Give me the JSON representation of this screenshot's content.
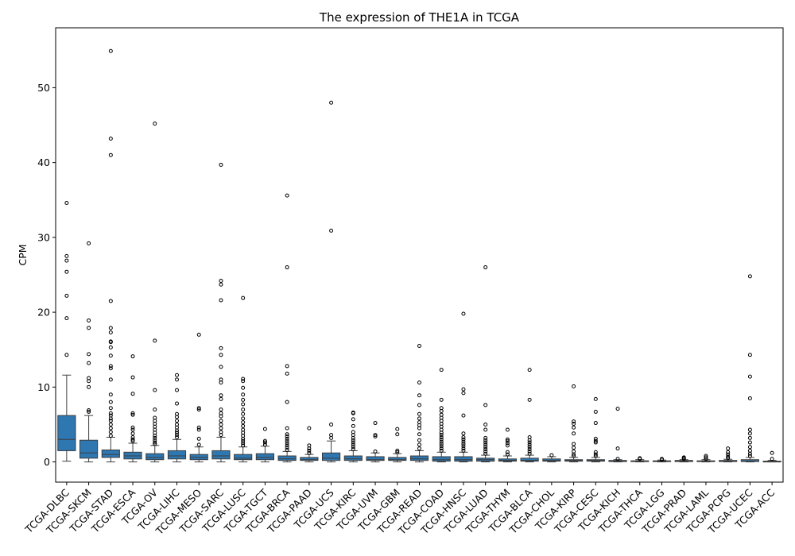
{
  "chart_data": {
    "type": "box",
    "title": "The expression of THE1A in TCGA",
    "xlabel": "",
    "ylabel": "CPM",
    "ylim": [
      -2.7,
      58
    ],
    "yticks": [
      0,
      10,
      20,
      30,
      40,
      50
    ],
    "box_color": "#2e77b1",
    "grid": false,
    "legend": "none",
    "categories": [
      "TCGA-DLBC",
      "TCGA-SKCM",
      "TCGA-STAD",
      "TCGA-ESCA",
      "TCGA-OV",
      "TCGA-LIHC",
      "TCGA-MESO",
      "TCGA-SARC",
      "TCGA-LUSC",
      "TCGA-TGCT",
      "TCGA-BRCA",
      "TCGA-PAAD",
      "TCGA-UCS",
      "TCGA-KIRC",
      "TCGA-UVM",
      "TCGA-GBM",
      "TCGA-READ",
      "TCGA-COAD",
      "TCGA-HNSC",
      "TCGA-LUAD",
      "TCGA-THYM",
      "TCGA-BLCA",
      "TCGA-CHOL",
      "TCGA-KIRP",
      "TCGA-CESC",
      "TCGA-KICH",
      "TCGA-THCA",
      "TCGA-LGG",
      "TCGA-PRAD",
      "TCGA-LAML",
      "TCGA-PCPG",
      "TCGA-UCEC",
      "TCGA-ACC"
    ],
    "boxes": [
      {
        "whislo": 0.1,
        "q1": 1.5,
        "med": 3.0,
        "q3": 6.2,
        "whishi": 11.6,
        "fliers": [
          14.3,
          19.2,
          22.2,
          25.4,
          26.9,
          27.5,
          34.6
        ]
      },
      {
        "whislo": 0.0,
        "q1": 0.5,
        "med": 1.2,
        "q3": 2.9,
        "whishi": 6.2,
        "fliers": [
          6.7,
          6.9,
          10.0,
          10.8,
          11.2,
          13.2,
          14.4,
          17.9,
          18.9,
          29.2
        ]
      },
      {
        "whislo": 0.0,
        "q1": 0.6,
        "med": 1.0,
        "q3": 1.6,
        "whishi": 3.3,
        "fliers": [
          3.5,
          4.0,
          4.5,
          5.0,
          5.5,
          5.8,
          6.2,
          6.5,
          7.2,
          8.0,
          9.0,
          11.0,
          12.5,
          12.8,
          14.2,
          15.3,
          16.0,
          16.1,
          17.3,
          17.9,
          21.5,
          41.0,
          43.2,
          54.9
        ]
      },
      {
        "whislo": 0.0,
        "q1": 0.4,
        "med": 0.8,
        "q3": 1.3,
        "whishi": 2.5,
        "fliers": [
          2.8,
          3.0,
          3.3,
          3.8,
          4.3,
          4.6,
          6.3,
          6.5,
          9.1,
          11.3,
          14.1
        ]
      },
      {
        "whislo": 0.0,
        "q1": 0.3,
        "med": 0.6,
        "q3": 1.1,
        "whishi": 2.2,
        "fliers": [
          2.4,
          2.6,
          2.9,
          3.2,
          3.5,
          3.9,
          4.3,
          4.7,
          5.1,
          5.5,
          5.9,
          7.0,
          9.6,
          16.2,
          45.2
        ]
      },
      {
        "whislo": 0.0,
        "q1": 0.4,
        "med": 0.8,
        "q3": 1.5,
        "whishi": 3.0,
        "fliers": [
          3.3,
          3.6,
          3.9,
          4.2,
          4.6,
          5.0,
          5.5,
          6.0,
          6.4,
          7.8,
          9.6,
          11.0,
          11.6
        ]
      },
      {
        "whislo": 0.0,
        "q1": 0.3,
        "med": 0.6,
        "q3": 1.0,
        "whishi": 2.0,
        "fliers": [
          2.3,
          3.1,
          4.3,
          4.6,
          7.0,
          7.2,
          17.0
        ]
      },
      {
        "whislo": 0.0,
        "q1": 0.4,
        "med": 0.8,
        "q3": 1.5,
        "whishi": 3.3,
        "fliers": [
          3.6,
          4.0,
          4.5,
          5.0,
          5.5,
          6.1,
          6.5,
          7.0,
          8.4,
          8.9,
          10.6,
          11.0,
          12.7,
          14.3,
          15.2,
          21.6,
          23.7,
          24.2,
          39.7
        ]
      },
      {
        "whislo": 0.0,
        "q1": 0.3,
        "med": 0.5,
        "q3": 1.0,
        "whishi": 2.0,
        "fliers": [
          2.2,
          2.5,
          2.8,
          3.1,
          3.5,
          3.9,
          4.3,
          4.8,
          5.3,
          5.8,
          6.4,
          7.0,
          7.7,
          8.3,
          9.0,
          9.9,
          10.8,
          11.1,
          21.9
        ]
      },
      {
        "whislo": 0.0,
        "q1": 0.3,
        "med": 0.6,
        "q3": 1.1,
        "whishi": 2.1,
        "fliers": [
          2.3,
          2.6,
          2.8,
          4.4
        ]
      },
      {
        "whislo": 0.0,
        "q1": 0.2,
        "med": 0.4,
        "q3": 0.8,
        "whishi": 1.4,
        "fliers": [
          1.6,
          1.9,
          2.2,
          2.5,
          2.8,
          3.1,
          3.4,
          3.7,
          4.5,
          8.0,
          11.8,
          12.8,
          26.0,
          35.6
        ]
      },
      {
        "whislo": 0.0,
        "q1": 0.2,
        "med": 0.3,
        "q3": 0.6,
        "whishi": 1.0,
        "fliers": [
          1.2,
          1.5,
          1.8,
          2.2,
          4.5
        ]
      },
      {
        "whislo": 0.0,
        "q1": 0.2,
        "med": 0.5,
        "q3": 1.2,
        "whishi": 2.8,
        "fliers": [
          3.2,
          3.6,
          5.0,
          30.9,
          48.0
        ]
      },
      {
        "whislo": 0.0,
        "q1": 0.2,
        "med": 0.4,
        "q3": 0.8,
        "whishi": 1.5,
        "fliers": [
          1.7,
          2.0,
          2.3,
          2.6,
          2.9,
          3.2,
          3.6,
          4.0,
          4.8,
          5.7,
          6.5,
          6.6
        ]
      },
      {
        "whislo": 0.0,
        "q1": 0.2,
        "med": 0.3,
        "q3": 0.7,
        "whishi": 1.2,
        "fliers": [
          1.4,
          3.4,
          3.6,
          5.2
        ]
      },
      {
        "whislo": 0.0,
        "q1": 0.2,
        "med": 0.3,
        "q3": 0.6,
        "whishi": 1.1,
        "fliers": [
          1.3,
          1.5,
          3.7,
          4.4
        ]
      },
      {
        "whislo": 0.0,
        "q1": 0.2,
        "med": 0.4,
        "q3": 0.8,
        "whishi": 1.5,
        "fliers": [
          1.8,
          2.3,
          2.9,
          3.7,
          4.5,
          4.9,
          5.3,
          5.8,
          6.4,
          7.6,
          8.9,
          10.6,
          15.5
        ]
      },
      {
        "whislo": 0.0,
        "q1": 0.1,
        "med": 0.3,
        "q3": 0.7,
        "whishi": 1.3,
        "fliers": [
          1.5,
          1.8,
          2.1,
          2.4,
          2.7,
          3.0,
          3.3,
          3.6,
          3.9,
          4.3,
          4.7,
          5.1,
          5.5,
          5.9,
          6.3,
          6.8,
          7.2,
          8.3,
          12.3
        ]
      },
      {
        "whislo": 0.0,
        "q1": 0.1,
        "med": 0.3,
        "q3": 0.7,
        "whishi": 1.3,
        "fliers": [
          1.5,
          1.8,
          2.1,
          2.4,
          2.7,
          3.0,
          3.3,
          3.8,
          6.2,
          9.2,
          9.7,
          19.8
        ]
      },
      {
        "whislo": 0.0,
        "q1": 0.1,
        "med": 0.3,
        "q3": 0.5,
        "whishi": 0.9,
        "fliers": [
          1.1,
          1.4,
          1.7,
          2.0,
          2.3,
          2.6,
          2.9,
          3.2,
          4.3,
          5.0,
          7.6,
          26.0
        ]
      },
      {
        "whislo": 0.0,
        "q1": 0.1,
        "med": 0.2,
        "q3": 0.4,
        "whishi": 0.8,
        "fliers": [
          1.0,
          1.3,
          2.2,
          2.5,
          2.8,
          3.0,
          4.3
        ]
      },
      {
        "whislo": 0.0,
        "q1": 0.1,
        "med": 0.2,
        "q3": 0.5,
        "whishi": 0.9,
        "fliers": [
          1.1,
          1.4,
          1.7,
          2.0,
          2.3,
          2.6,
          2.9,
          3.3,
          8.3,
          12.3
        ]
      },
      {
        "whislo": 0.0,
        "q1": 0.1,
        "med": 0.2,
        "q3": 0.4,
        "whishi": 0.7,
        "fliers": [
          0.9
        ]
      },
      {
        "whislo": 0.0,
        "q1": 0.1,
        "med": 0.2,
        "q3": 0.3,
        "whishi": 0.6,
        "fliers": [
          0.8,
          1.0,
          1.4,
          1.9,
          2.4,
          3.8,
          4.6,
          5.1,
          5.4,
          10.1
        ]
      },
      {
        "whislo": 0.0,
        "q1": 0.1,
        "med": 0.2,
        "q3": 0.3,
        "whishi": 0.6,
        "fliers": [
          0.8,
          1.0,
          1.3,
          2.6,
          2.8,
          3.1,
          5.2,
          6.7,
          8.4
        ]
      },
      {
        "whislo": 0.0,
        "q1": 0.05,
        "med": 0.1,
        "q3": 0.2,
        "whishi": 0.3,
        "fliers": [
          0.4,
          1.8,
          7.1
        ]
      },
      {
        "whislo": 0.0,
        "q1": 0.05,
        "med": 0.1,
        "q3": 0.15,
        "whishi": 0.3,
        "fliers": [
          0.4,
          0.5
        ]
      },
      {
        "whislo": 0.0,
        "q1": 0.05,
        "med": 0.1,
        "q3": 0.15,
        "whishi": 0.25,
        "fliers": [
          0.3,
          0.4
        ]
      },
      {
        "whislo": 0.0,
        "q1": 0.05,
        "med": 0.1,
        "q3": 0.2,
        "whishi": 0.3,
        "fliers": [
          0.4,
          0.5,
          0.6
        ]
      },
      {
        "whislo": 0.0,
        "q1": 0.05,
        "med": 0.1,
        "q3": 0.15,
        "whishi": 0.3,
        "fliers": [
          0.4,
          0.6,
          0.8
        ]
      },
      {
        "whislo": 0.0,
        "q1": 0.05,
        "med": 0.1,
        "q3": 0.2,
        "whishi": 0.35,
        "fliers": [
          0.5,
          0.7,
          1.0,
          1.3,
          1.8
        ]
      },
      {
        "whislo": 0.0,
        "q1": 0.05,
        "med": 0.1,
        "q3": 0.3,
        "whishi": 0.6,
        "fliers": [
          0.8,
          1.1,
          1.5,
          2.0,
          2.6,
          3.2,
          3.8,
          4.3,
          8.5,
          11.4,
          14.3,
          24.8
        ]
      },
      {
        "whislo": 0.0,
        "q1": 0.0,
        "med": 0.05,
        "q3": 0.1,
        "whishi": 0.2,
        "fliers": [
          0.4,
          1.2
        ]
      }
    ]
  }
}
